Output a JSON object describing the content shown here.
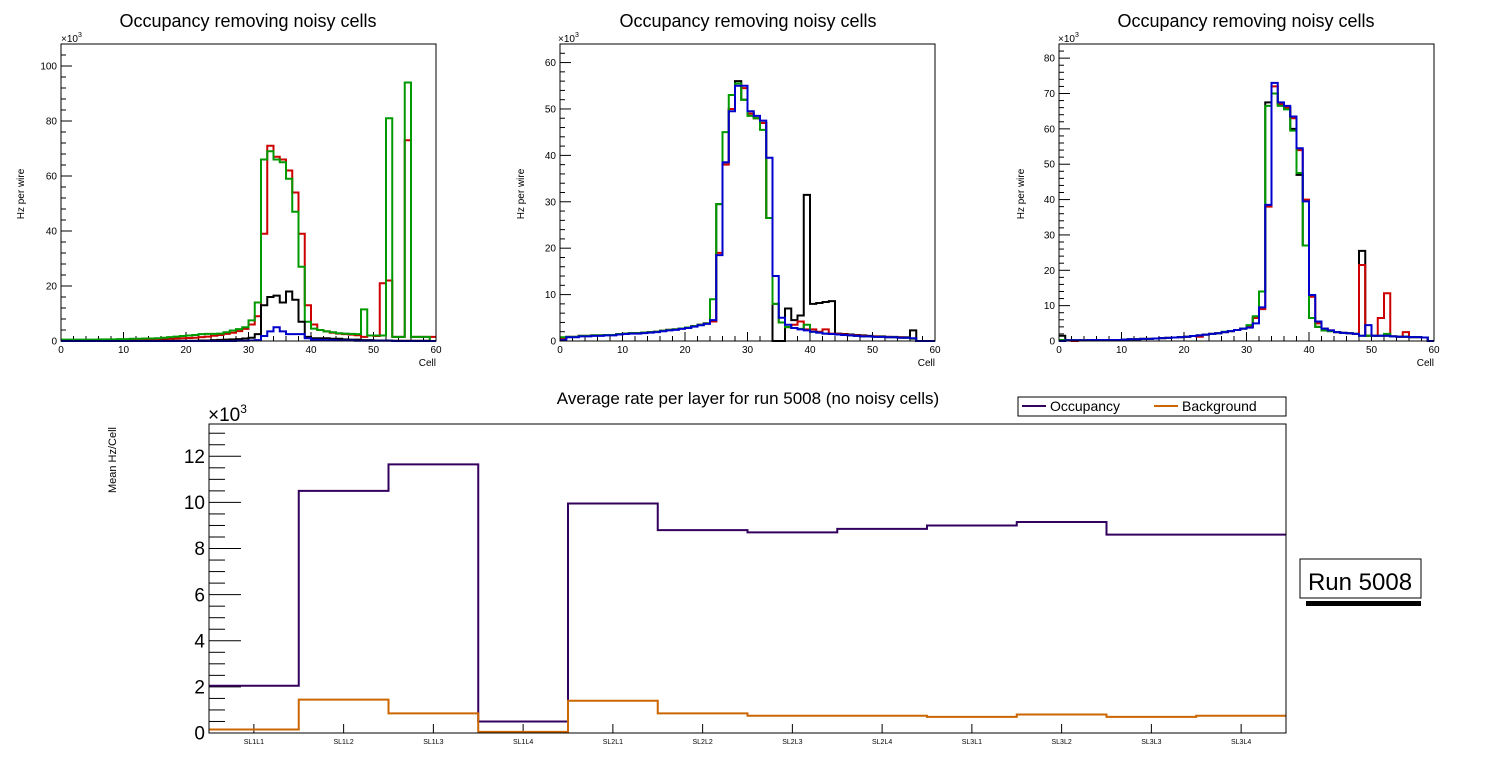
{
  "chart_data": [
    {
      "type": "line",
      "style": "step-histogram",
      "title": "Occupancy removing noisy cells",
      "xlabel": "Cell",
      "ylabel": "Hz per wire",
      "y_multiplier_label": "×10^3",
      "xlim": [
        0,
        60
      ],
      "ylim": [
        0,
        108
      ],
      "xticks": [
        0,
        10,
        20,
        30,
        40,
        50,
        60
      ],
      "yticks": [
        0,
        20,
        40,
        60,
        80,
        100
      ],
      "bins": {
        "start": 0,
        "width": 1,
        "count": 60
      },
      "series": [
        {
          "name": "red",
          "color": "#cc0000",
          "values": [
            0.3,
            0.3,
            0.3,
            0.3,
            0.3,
            0.3,
            0.5,
            0.5,
            0.5,
            0.5,
            0.5,
            0.5,
            0.6,
            0.6,
            0.6,
            0.6,
            0.7,
            0.8,
            0.9,
            1.0,
            1.1,
            1.2,
            1.4,
            1.6,
            1.9,
            2.2,
            2.6,
            3.0,
            3.6,
            4.4,
            6,
            9,
            39,
            71,
            67,
            66,
            62,
            54,
            39,
            13,
            6,
            4,
            3.5,
            3,
            2.7,
            2.5,
            2.3,
            2.1,
            1.5,
            2,
            1.8,
            21,
            22,
            1.5,
            1.5,
            73,
            1.5,
            1.5,
            1.5,
            1.5
          ]
        },
        {
          "name": "green",
          "color": "#009900",
          "values": [
            0.5,
            0.5,
            0.5,
            0.5,
            0.5,
            0.5,
            0.6,
            0.6,
            0.6,
            0.7,
            0.7,
            0.8,
            0.8,
            0.9,
            0.9,
            1.0,
            1.2,
            1.4,
            1.6,
            1.8,
            2.0,
            2.2,
            2.5,
            2.6,
            2.6,
            2.7,
            3.2,
            3.8,
            4.3,
            5,
            7.5,
            14,
            66,
            69,
            66,
            65,
            59,
            47,
            27,
            7,
            4.5,
            4,
            3.5,
            3.2,
            2.8,
            2.7,
            2.6,
            2.5,
            11.5,
            2,
            2,
            2,
            81,
            1.5,
            1.5,
            94,
            1.5,
            1.5,
            1.5,
            0
          ]
        },
        {
          "name": "black",
          "color": "#000000",
          "values": [
            0,
            0,
            0,
            0,
            0,
            0,
            0,
            0,
            0,
            0,
            0,
            0,
            0,
            0,
            0,
            0,
            0.1,
            0.1,
            0.1,
            0.1,
            0.1,
            0.1,
            0.2,
            0.2,
            0.3,
            0.4,
            0.5,
            0.6,
            0.7,
            0.9,
            1.2,
            2.5,
            13,
            16,
            16.5,
            14,
            18,
            15,
            7,
            1.5,
            1,
            1,
            1,
            0.8,
            0.8,
            0.6,
            0.5,
            0.5,
            0.3,
            0.3,
            0.2,
            0.2,
            0.2,
            0.1,
            0.1,
            0.1,
            0.1,
            0.1,
            0.1,
            0
          ]
        },
        {
          "name": "blue",
          "color": "#0000cc",
          "values": [
            0,
            0,
            0,
            0,
            0,
            0,
            0,
            0,
            0,
            0,
            0,
            0,
            0,
            0,
            0,
            0,
            0,
            0,
            0,
            0,
            0,
            0,
            0,
            0,
            0,
            0,
            0,
            0,
            0.1,
            0.1,
            0.2,
            0.3,
            1.8,
            3.5,
            5,
            3.5,
            2.5,
            2.5,
            2.5,
            1,
            0.5,
            0.4,
            0.3,
            0.3,
            0.2,
            0.2,
            0.2,
            0.1,
            0.1,
            0.1,
            0.1,
            0.1,
            0.1,
            0,
            0,
            0,
            0,
            0,
            0,
            0
          ]
        }
      ]
    },
    {
      "type": "line",
      "style": "step-histogram",
      "title": "Occupancy removing noisy cells",
      "xlabel": "Cell",
      "ylabel": "Hz per wire",
      "y_multiplier_label": "×10^3",
      "xlim": [
        0,
        60
      ],
      "ylim": [
        0,
        64
      ],
      "xticks": [
        0,
        10,
        20,
        30,
        40,
        50,
        60
      ],
      "yticks": [
        0,
        10,
        20,
        30,
        40,
        50,
        60
      ],
      "bins": {
        "start": 0,
        "width": 1,
        "count": 60
      },
      "series": [
        {
          "name": "black",
          "color": "#000000",
          "values": [
            0.5,
            0.9,
            0.9,
            1.1,
            1.1,
            1.2,
            1.2,
            1.3,
            1.3,
            1.5,
            1.6,
            1.7,
            1.7,
            1.8,
            1.9,
            2.0,
            2.2,
            2.4,
            2.5,
            2.7,
            2.9,
            3.2,
            3.5,
            3.8,
            4.2,
            29.5,
            38.5,
            50,
            56,
            52,
            49,
            48,
            47,
            26.5,
            0,
            0,
            7,
            4.5,
            5.5,
            31.5,
            8,
            8.2,
            8.4,
            8.6,
            1.6,
            1.5,
            1.4,
            1.3,
            1.2,
            1.1,
            1.0,
            1.0,
            0.9,
            0.9,
            0.8,
            0.8,
            2.3,
            0,
            0,
            0
          ]
        },
        {
          "name": "red",
          "color": "#cc0000",
          "values": [
            0.5,
            0.9,
            0.9,
            1.1,
            1.1,
            1.2,
            1.2,
            1.3,
            1.3,
            1.5,
            1.6,
            1.7,
            1.7,
            1.8,
            1.9,
            2.0,
            2.2,
            2.4,
            2.5,
            2.7,
            2.9,
            3.2,
            3.5,
            3.8,
            4.2,
            19,
            38,
            50,
            55.5,
            54.5,
            49,
            48,
            47,
            26.5,
            8,
            4,
            3,
            3.5,
            4.2,
            2.5,
            2.5,
            2,
            2.5,
            1.6,
            1.5,
            1.4,
            1.3,
            1.2,
            1.1,
            1.0,
            1.0,
            0.9,
            0.9,
            0.8,
            0.8,
            0.7,
            0.5,
            0,
            0,
            0
          ]
        },
        {
          "name": "green",
          "color": "#009900",
          "values": [
            0.8,
            0.9,
            0.9,
            1.1,
            1.1,
            1.2,
            1.2,
            1.3,
            1.3,
            1.5,
            1.6,
            1.7,
            1.7,
            1.8,
            1.9,
            2.0,
            2.2,
            2.4,
            2.5,
            2.7,
            2.9,
            3.2,
            3.5,
            3.8,
            9,
            29.5,
            45,
            53,
            55.5,
            52,
            48.5,
            48,
            45.5,
            26.5,
            8,
            4,
            3,
            2.8,
            2.6,
            3.5,
            2,
            1.8,
            1.6,
            1.5,
            1.4,
            1.3,
            1.2,
            1.1,
            1.0,
            1.0,
            0.9,
            0.9,
            0.8,
            0.8,
            0.7,
            0.7,
            0.5,
            0,
            0,
            0
          ]
        },
        {
          "name": "blue",
          "color": "#0000cc",
          "values": [
            0.2,
            0.8,
            0.8,
            1.0,
            1.0,
            1.1,
            1.1,
            1.2,
            1.2,
            1.4,
            1.5,
            1.6,
            1.6,
            1.7,
            1.8,
            1.9,
            2.1,
            2.3,
            2.4,
            2.6,
            2.8,
            3.1,
            3.4,
            3.7,
            4.5,
            18.5,
            38.5,
            49.5,
            55,
            55,
            49.5,
            48.5,
            47.5,
            39.5,
            14,
            5,
            3.5,
            2.8,
            2.5,
            2.3,
            2,
            1.8,
            1.6,
            1.5,
            1.4,
            1.3,
            1.2,
            1.1,
            1.0,
            1.0,
            0.9,
            0.9,
            0.8,
            0.8,
            0.7,
            0.7,
            0.6,
            0,
            0,
            0
          ]
        }
      ]
    },
    {
      "type": "line",
      "style": "step-histogram",
      "title": "Occupancy removing noisy cells",
      "xlabel": "Cell",
      "ylabel": "Hz per wire",
      "y_multiplier_label": "×10^3",
      "xlim": [
        0,
        60
      ],
      "ylim": [
        0,
        84
      ],
      "xticks": [
        0,
        10,
        20,
        30,
        40,
        50,
        60
      ],
      "yticks": [
        0,
        10,
        20,
        30,
        40,
        50,
        60,
        70,
        80
      ],
      "bins": {
        "start": 0,
        "width": 1,
        "count": 60
      },
      "series": [
        {
          "name": "black",
          "color": "#000000",
          "values": [
            1.5,
            0.2,
            0.2,
            0.2,
            0.2,
            0.3,
            0.3,
            0.3,
            0.3,
            0.3,
            0.4,
            0.5,
            0.5,
            0.6,
            0.6,
            0.7,
            0.8,
            0.9,
            1.0,
            1.1,
            1.2,
            1.4,
            1.6,
            1.8,
            2.0,
            2.2,
            2.5,
            2.8,
            3.1,
            3.5,
            4,
            6.5,
            14,
            67.5,
            70,
            67,
            66,
            60,
            47,
            27,
            6.5,
            4,
            3,
            2.8,
            2.5,
            2.3,
            2.2,
            2,
            25.5,
            1.5,
            1.5,
            1.5,
            1.5,
            1.3,
            1.2,
            1.2,
            1.1,
            1.1,
            1.0,
            0
          ]
        },
        {
          "name": "red",
          "color": "#cc0000",
          "values": [
            0.2,
            0.2,
            0,
            0.2,
            0.2,
            0.3,
            0.3,
            0.3,
            0.3,
            0.3,
            0.4,
            0.5,
            0.5,
            0.6,
            0.6,
            0.7,
            0.8,
            0.9,
            1.0,
            1.1,
            1.2,
            1.4,
            1.2,
            1.8,
            2.0,
            2.2,
            2.5,
            2.8,
            3.1,
            3.5,
            4,
            6.5,
            9,
            38,
            72,
            67,
            66,
            63,
            54,
            40,
            12.5,
            5,
            3.5,
            3,
            2.5,
            2.3,
            2.2,
            2,
            21.5,
            1.5,
            1.5,
            6.5,
            13.5,
            1.3,
            1.2,
            2.5,
            1.1,
            1.1,
            1.0,
            0
          ]
        },
        {
          "name": "green",
          "color": "#009900",
          "values": [
            0.3,
            0.2,
            0.2,
            0.2,
            0.2,
            0.3,
            0.3,
            0.3,
            0.3,
            0.3,
            0.4,
            0.5,
            0.5,
            0.6,
            0.6,
            0.7,
            0.8,
            0.9,
            1.0,
            1.1,
            1.2,
            1.4,
            1.6,
            1.8,
            2.0,
            2.2,
            2.6,
            2.8,
            3.1,
            3.5,
            4.5,
            7,
            14,
            66.5,
            70,
            66.5,
            65.5,
            59.5,
            47.5,
            27,
            6.5,
            4,
            3,
            2.8,
            2.5,
            2.3,
            2.2,
            2,
            1.5,
            1.5,
            1.5,
            1.5,
            2,
            1.3,
            1.2,
            1.2,
            1.1,
            1.1,
            1.0,
            0
          ]
        },
        {
          "name": "blue",
          "color": "#0000cc",
          "values": [
            0,
            0.2,
            0.2,
            0.2,
            0.2,
            0.3,
            0.3,
            0.3,
            0.3,
            0.3,
            0.4,
            0.5,
            0.5,
            0.6,
            0.6,
            0.7,
            0.8,
            0.9,
            1.0,
            1.1,
            1.2,
            1.4,
            1.6,
            1.8,
            2.0,
            2.2,
            2.5,
            2.8,
            3.1,
            3.5,
            3.8,
            5,
            9.5,
            38.5,
            73,
            67.5,
            66.5,
            63.5,
            54.5,
            39.5,
            13,
            5.5,
            3.5,
            3,
            2.5,
            2.3,
            2.2,
            2,
            1.5,
            4.5,
            1.5,
            1.5,
            1.5,
            1.3,
            1.2,
            1.2,
            1.1,
            1.1,
            1.0,
            0
          ]
        }
      ]
    },
    {
      "type": "line",
      "style": "step-histogram",
      "title": "Average rate per layer for run 5008 (no noisy cells)",
      "xlabel": "",
      "ylabel": "Mean Hz/Cell",
      "y_multiplier_label": "×10^3",
      "ylim": [
        0,
        13.4
      ],
      "yticks": [
        0,
        2,
        4,
        6,
        8,
        10,
        12
      ],
      "categories": [
        "SL1L1",
        "SL1L2",
        "SL1L3",
        "SL1L4",
        "SL2L1",
        "SL2L2",
        "SL2L3",
        "SL2L4",
        "SL3L1",
        "SL3L2",
        "SL3L3",
        "SL3L4"
      ],
      "legend": {
        "placement": "top-right",
        "entries": [
          "Occupancy",
          "Background"
        ]
      },
      "series": [
        {
          "name": "Occupancy",
          "color": "#33005e",
          "values": [
            2.05,
            10.5,
            11.65,
            0.5,
            9.95,
            8.8,
            8.7,
            8.85,
            9.0,
            9.15,
            8.6,
            8.6
          ]
        },
        {
          "name": "Background",
          "color": "#cc6600",
          "values": [
            0.15,
            1.45,
            0.85,
            0.05,
            1.4,
            0.85,
            0.75,
            0.75,
            0.7,
            0.8,
            0.7,
            0.75
          ]
        }
      ],
      "annotation": "Run 5008"
    }
  ]
}
